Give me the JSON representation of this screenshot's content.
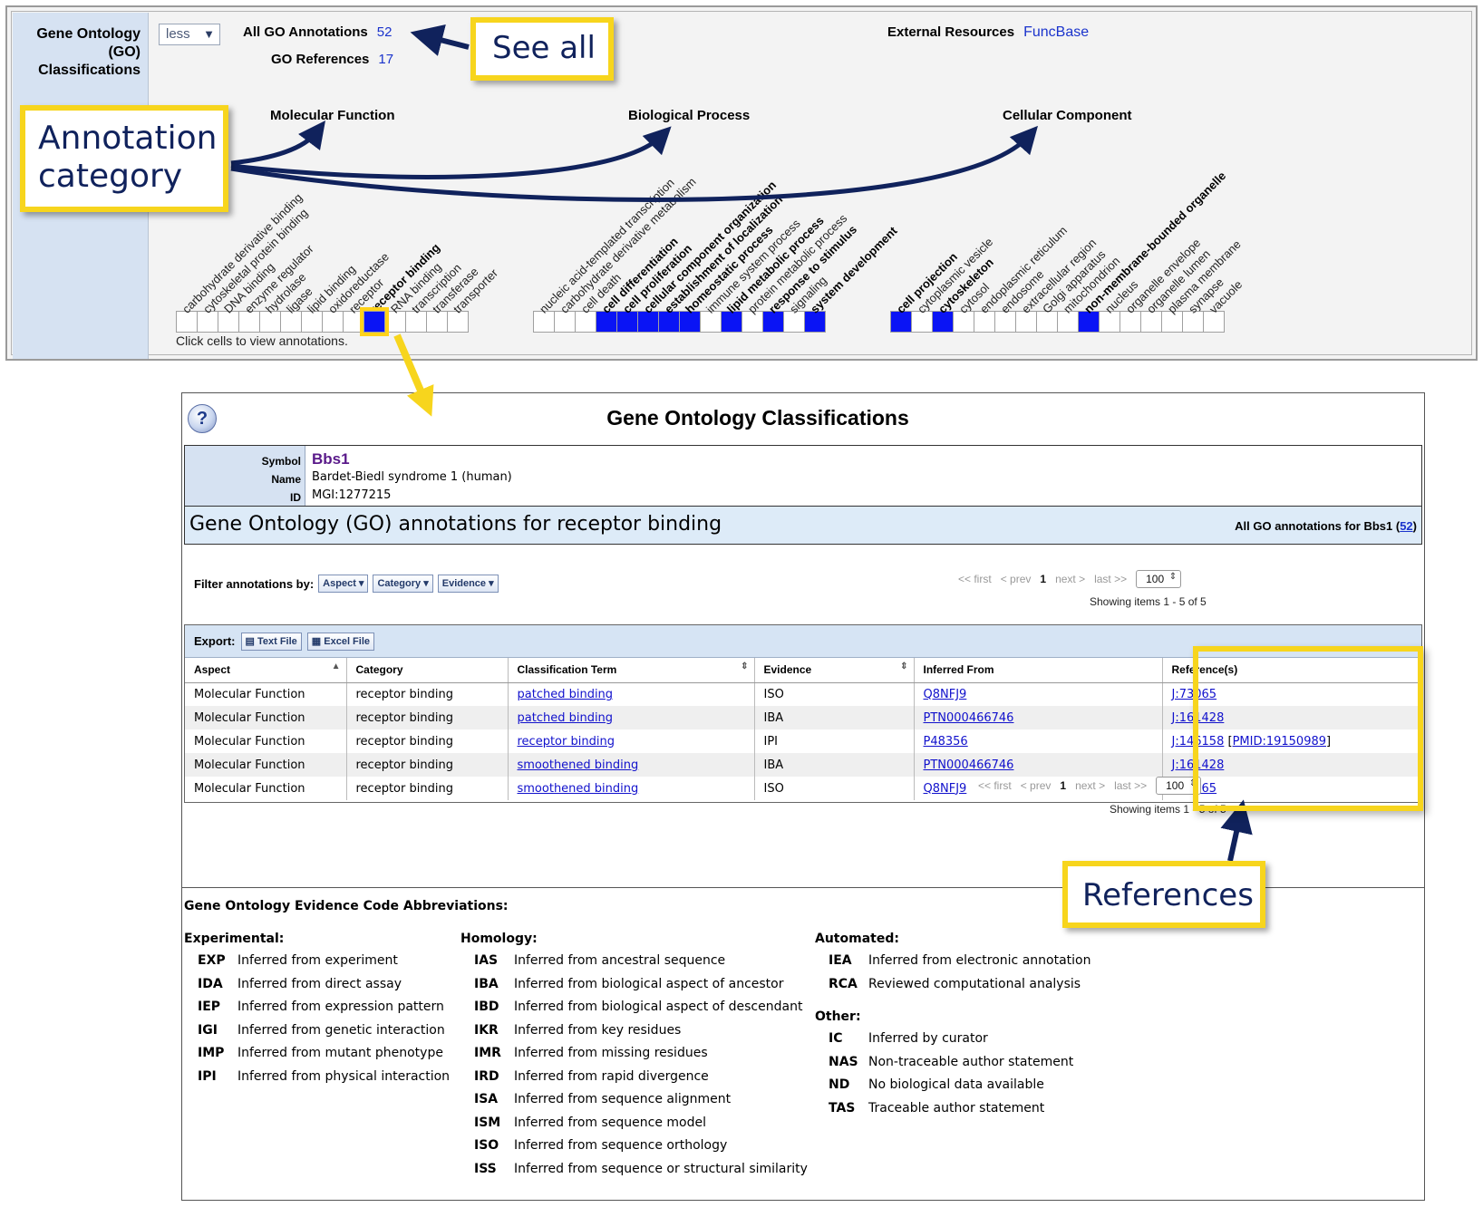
{
  "summary": {
    "section_label": [
      "Gene Ontology",
      "(GO)",
      "Classifications"
    ],
    "toggle": "less",
    "all_annotations_label": "All GO Annotations",
    "all_annotations_count": "52",
    "references_label": "GO References",
    "references_count": "17",
    "external_label": "External Resources",
    "external_link": "FuncBase",
    "headings": [
      "Molecular Function",
      "Biological Process",
      "Cellular Component"
    ],
    "mf_terms": [
      {
        "label": "carbohydrate derivative binding",
        "bold": false,
        "filled": false
      },
      {
        "label": "cytoskeletal protein binding",
        "bold": false,
        "filled": false
      },
      {
        "label": "DNA binding",
        "bold": false,
        "filled": false
      },
      {
        "label": "enzyme regulator",
        "bold": false,
        "filled": false
      },
      {
        "label": "hydrolase",
        "bold": false,
        "filled": false
      },
      {
        "label": "ligase",
        "bold": false,
        "filled": false
      },
      {
        "label": "lipid binding",
        "bold": false,
        "filled": false
      },
      {
        "label": "oxidoreductase",
        "bold": false,
        "filled": false
      },
      {
        "label": "receptor",
        "bold": false,
        "filled": false
      },
      {
        "label": "receptor binding",
        "bold": true,
        "filled": true,
        "selected": true
      },
      {
        "label": "RNA binding",
        "bold": false,
        "filled": false
      },
      {
        "label": "transcription",
        "bold": false,
        "filled": false
      },
      {
        "label": "transferase",
        "bold": false,
        "filled": false
      },
      {
        "label": "transporter",
        "bold": false,
        "filled": false
      }
    ],
    "bp_terms": [
      {
        "label": "nucleic acid-templated transcription",
        "bold": false,
        "filled": false
      },
      {
        "label": "carbohydrate derivative metabolism",
        "bold": false,
        "filled": false
      },
      {
        "label": "cell death",
        "bold": false,
        "filled": false
      },
      {
        "label": "cell differentiation",
        "bold": true,
        "filled": true
      },
      {
        "label": "cell proliferation",
        "bold": true,
        "filled": true
      },
      {
        "label": "cellular component organization",
        "bold": true,
        "filled": true
      },
      {
        "label": "establishment of localization",
        "bold": true,
        "filled": true
      },
      {
        "label": "homeostatic process",
        "bold": true,
        "filled": true
      },
      {
        "label": "immune system process",
        "bold": false,
        "filled": false
      },
      {
        "label": "lipid metabolic process",
        "bold": true,
        "filled": true
      },
      {
        "label": "protein metabolic process",
        "bold": false,
        "filled": false
      },
      {
        "label": "response to stimulus",
        "bold": true,
        "filled": true
      },
      {
        "label": "signaling",
        "bold": false,
        "filled": false
      },
      {
        "label": "system development",
        "bold": true,
        "filled": true
      }
    ],
    "cc_terms": [
      {
        "label": "cell projection",
        "bold": true,
        "filled": true
      },
      {
        "label": "cytoplasmic vesicle",
        "bold": false,
        "filled": false
      },
      {
        "label": "cytoskeleton",
        "bold": true,
        "filled": true
      },
      {
        "label": "cytosol",
        "bold": false,
        "filled": false
      },
      {
        "label": "endoplasmic reticulum",
        "bold": false,
        "filled": false
      },
      {
        "label": "endosome",
        "bold": false,
        "filled": false
      },
      {
        "label": "extracellular region",
        "bold": false,
        "filled": false
      },
      {
        "label": "Golgi apparatus",
        "bold": false,
        "filled": false
      },
      {
        "label": "mitochondrion",
        "bold": false,
        "filled": false
      },
      {
        "label": "non-membrane-bounded organelle",
        "bold": true,
        "filled": true
      },
      {
        "label": "nucleus",
        "bold": false,
        "filled": false
      },
      {
        "label": "organelle envelope",
        "bold": false,
        "filled": false
      },
      {
        "label": "organelle lumen",
        "bold": false,
        "filled": false
      },
      {
        "label": "plasma membrane",
        "bold": false,
        "filled": false
      },
      {
        "label": "synapse",
        "bold": false,
        "filled": false
      },
      {
        "label": "vacuole",
        "bold": false,
        "filled": false
      }
    ],
    "click_hint": "Click cells to view annotations."
  },
  "callouts": {
    "see_all": "See all",
    "annotation_category": [
      "Annotation",
      "category"
    ],
    "references": "References"
  },
  "detail": {
    "help_icon": "?",
    "title": "Gene Ontology Classifications",
    "symbol_label": "Symbol",
    "name_label": "Name",
    "id_label": "ID",
    "symbol": "Bbs1",
    "name": "Bardet-Biedl syndrome 1 (human)",
    "id": "MGI:1277215",
    "go_title": "Gene Ontology (GO) annotations for receptor binding",
    "all_prefix": "All GO annotations for Bbs1 (",
    "all_count": "52",
    "all_suffix": ")",
    "filter_label": "Filter annotations by:",
    "filters": [
      "Aspect",
      "Category",
      "Evidence"
    ],
    "pager": {
      "first": "<< first",
      "prev": "< prev",
      "current": "1",
      "next": "next >",
      "last": "last >>",
      "page_size": "100"
    },
    "showing": "Showing items 1 - 5 of 5",
    "showing_bottom": "Showing items 1 - 5 of 5",
    "export_label": "Export:",
    "export_text": "Text File",
    "export_excel": "Excel File",
    "columns": [
      "Aspect",
      "Category",
      "Classification Term",
      "Evidence",
      "Inferred From",
      "Reference(s)"
    ],
    "rows": [
      {
        "aspect": "Molecular Function",
        "category": "receptor binding",
        "term": "patched binding",
        "evidence": "ISO",
        "inferred": "Q8NFJ9",
        "ref": "J:73065",
        "pmid": ""
      },
      {
        "aspect": "Molecular Function",
        "category": "receptor binding",
        "term": "patched binding",
        "evidence": "IBA",
        "inferred": "PTN000466746",
        "ref": "J:161428",
        "pmid": ""
      },
      {
        "aspect": "Molecular Function",
        "category": "receptor binding",
        "term": "receptor binding",
        "evidence": "IPI",
        "inferred": "P48356",
        "ref": "J:146158",
        "pmid": "PMID:19150989"
      },
      {
        "aspect": "Molecular Function",
        "category": "receptor binding",
        "term": "smoothened binding",
        "evidence": "IBA",
        "inferred": "PTN000466746",
        "ref": "J:161428",
        "pmid": ""
      },
      {
        "aspect": "Molecular Function",
        "category": "receptor binding",
        "term": "smoothened binding",
        "evidence": "ISO",
        "inferred": "Q8NFJ9",
        "ref": "J:73065",
        "pmid": ""
      }
    ],
    "abbr_title": "Gene Ontology Evidence Code Abbreviations:",
    "abbr_groups": [
      {
        "title": "Experimental:",
        "items": [
          {
            "code": "EXP",
            "desc": "Inferred from experiment"
          },
          {
            "code": "IDA",
            "desc": "Inferred from direct assay"
          },
          {
            "code": "IEP",
            "desc": "Inferred from expression pattern"
          },
          {
            "code": "IGI",
            "desc": "Inferred from genetic interaction"
          },
          {
            "code": "IMP",
            "desc": "Inferred from mutant phenotype"
          },
          {
            "code": "IPI",
            "desc": "Inferred from physical interaction"
          }
        ]
      },
      {
        "title": "Homology:",
        "items": [
          {
            "code": "IAS",
            "desc": "Inferred from ancestral sequence"
          },
          {
            "code": "IBA",
            "desc": "Inferred from biological aspect of ancestor"
          },
          {
            "code": "IBD",
            "desc": "Inferred from biological aspect of descendant"
          },
          {
            "code": "IKR",
            "desc": "Inferred from key residues"
          },
          {
            "code": "IMR",
            "desc": "Inferred from missing residues"
          },
          {
            "code": "IRD",
            "desc": "Inferred from rapid divergence"
          },
          {
            "code": "ISA",
            "desc": "Inferred from sequence alignment"
          },
          {
            "code": "ISM",
            "desc": "Inferred from sequence model"
          },
          {
            "code": "ISO",
            "desc": "Inferred from sequence orthology"
          },
          {
            "code": "ISS",
            "desc": "Inferred from sequence or structural similarity"
          }
        ]
      },
      {
        "title": "Automated:",
        "items": [
          {
            "code": "IEA",
            "desc": "Inferred from electronic annotation"
          },
          {
            "code": "RCA",
            "desc": "Reviewed computational analysis"
          }
        ]
      },
      {
        "title": "Other:",
        "items": [
          {
            "code": "IC",
            "desc": "Inferred by curator"
          },
          {
            "code": "NAS",
            "desc": "Non-traceable author statement"
          },
          {
            "code": "ND",
            "desc": "No biological data available"
          },
          {
            "code": "TAS",
            "desc": "Traceable author statement"
          }
        ]
      }
    ]
  },
  "colors": {
    "filled_cell": "#0a14f5",
    "callout_border": "#f7d51d",
    "callout_text": "#10225c",
    "arrow": "#10225c"
  }
}
